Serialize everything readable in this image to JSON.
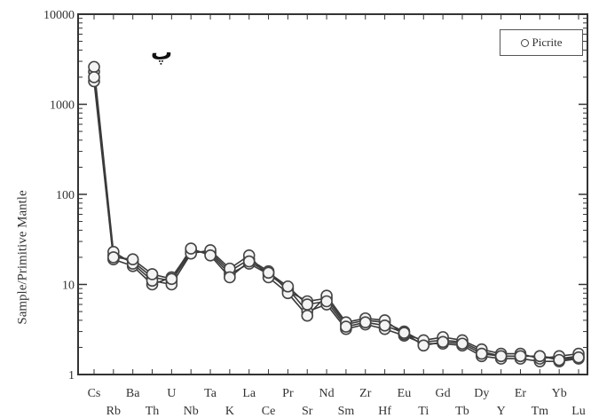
{
  "panel_label": "پ",
  "chart_data": {
    "type": "line",
    "ylabel": "Sample/Primitive Mantle",
    "xlabel": "",
    "yscale": "log",
    "ylim": [
      1,
      10000
    ],
    "ytick_labels": [
      "1",
      "10",
      "100",
      "1000",
      "10000"
    ],
    "ytick_values": [
      1,
      10,
      100,
      1000,
      10000
    ],
    "legend": {
      "placement": "top-right",
      "entries": [
        "Picrite"
      ],
      "marker": "open-circle"
    },
    "categories": [
      "Cs",
      "Rb",
      "Ba",
      "Th",
      "U",
      "Nb",
      "Ta",
      "K",
      "La",
      "Ce",
      "Pr",
      "Sr",
      "Nd",
      "Sm",
      "Zr",
      "Hf",
      "Eu",
      "Ti",
      "Gd",
      "Tb",
      "Dy",
      "Y",
      "Er",
      "Tm",
      "Yb",
      "Lu"
    ],
    "category_labels_top": [
      "Cs",
      "Ba",
      "U",
      "Ta",
      "La",
      "Pr",
      "Nd",
      "Zr",
      "Eu",
      "Gd",
      "Dy",
      "Er",
      "Yb"
    ],
    "category_labels_bottom": [
      "Rb",
      "Th",
      "Nb",
      "K",
      "Ce",
      "Sr",
      "Sm",
      "Hf",
      "Ti",
      "Tb",
      "Y",
      "Tm",
      "Lu"
    ],
    "series": [
      {
        "name": "Picrite",
        "values": [
          2300,
          21,
          18,
          12,
          11,
          23,
          23,
          14,
          19,
          14,
          8.5,
          6.5,
          7,
          3.6,
          4,
          3.8,
          3,
          2.3,
          2.4,
          2.3,
          1.8,
          1.6,
          1.6,
          1.6,
          1.5,
          1.6
        ]
      },
      {
        "name": "Picrite",
        "values": [
          1800,
          19,
          16,
          10,
          12,
          24,
          22,
          13,
          17,
          13,
          9,
          5,
          6,
          3.2,
          3.6,
          3.2,
          2.7,
          2.2,
          2.2,
          2.1,
          1.6,
          1.5,
          1.5,
          1.4,
          1.4,
          1.5
        ]
      },
      {
        "name": "Picrite",
        "values": [
          2600,
          23,
          17,
          11,
          10,
          22,
          24,
          15,
          21,
          12,
          8,
          4.5,
          7.5,
          3.8,
          4.2,
          4,
          2.8,
          2.4,
          2.6,
          2.4,
          1.9,
          1.7,
          1.7,
          1.5,
          1.6,
          1.7
        ]
      },
      {
        "name": "Picrite",
        "values": [
          2000,
          20,
          19,
          13,
          11.5,
          25,
          21,
          12,
          18,
          13.5,
          9.5,
          6,
          6.5,
          3.4,
          3.8,
          3.5,
          2.9,
          2.1,
          2.3,
          2.2,
          1.7,
          1.6,
          1.6,
          1.6,
          1.45,
          1.55
        ]
      }
    ],
    "colors": {
      "line": "#3a3a3a",
      "marker_stroke": "#444444",
      "axis": "#333333"
    }
  }
}
